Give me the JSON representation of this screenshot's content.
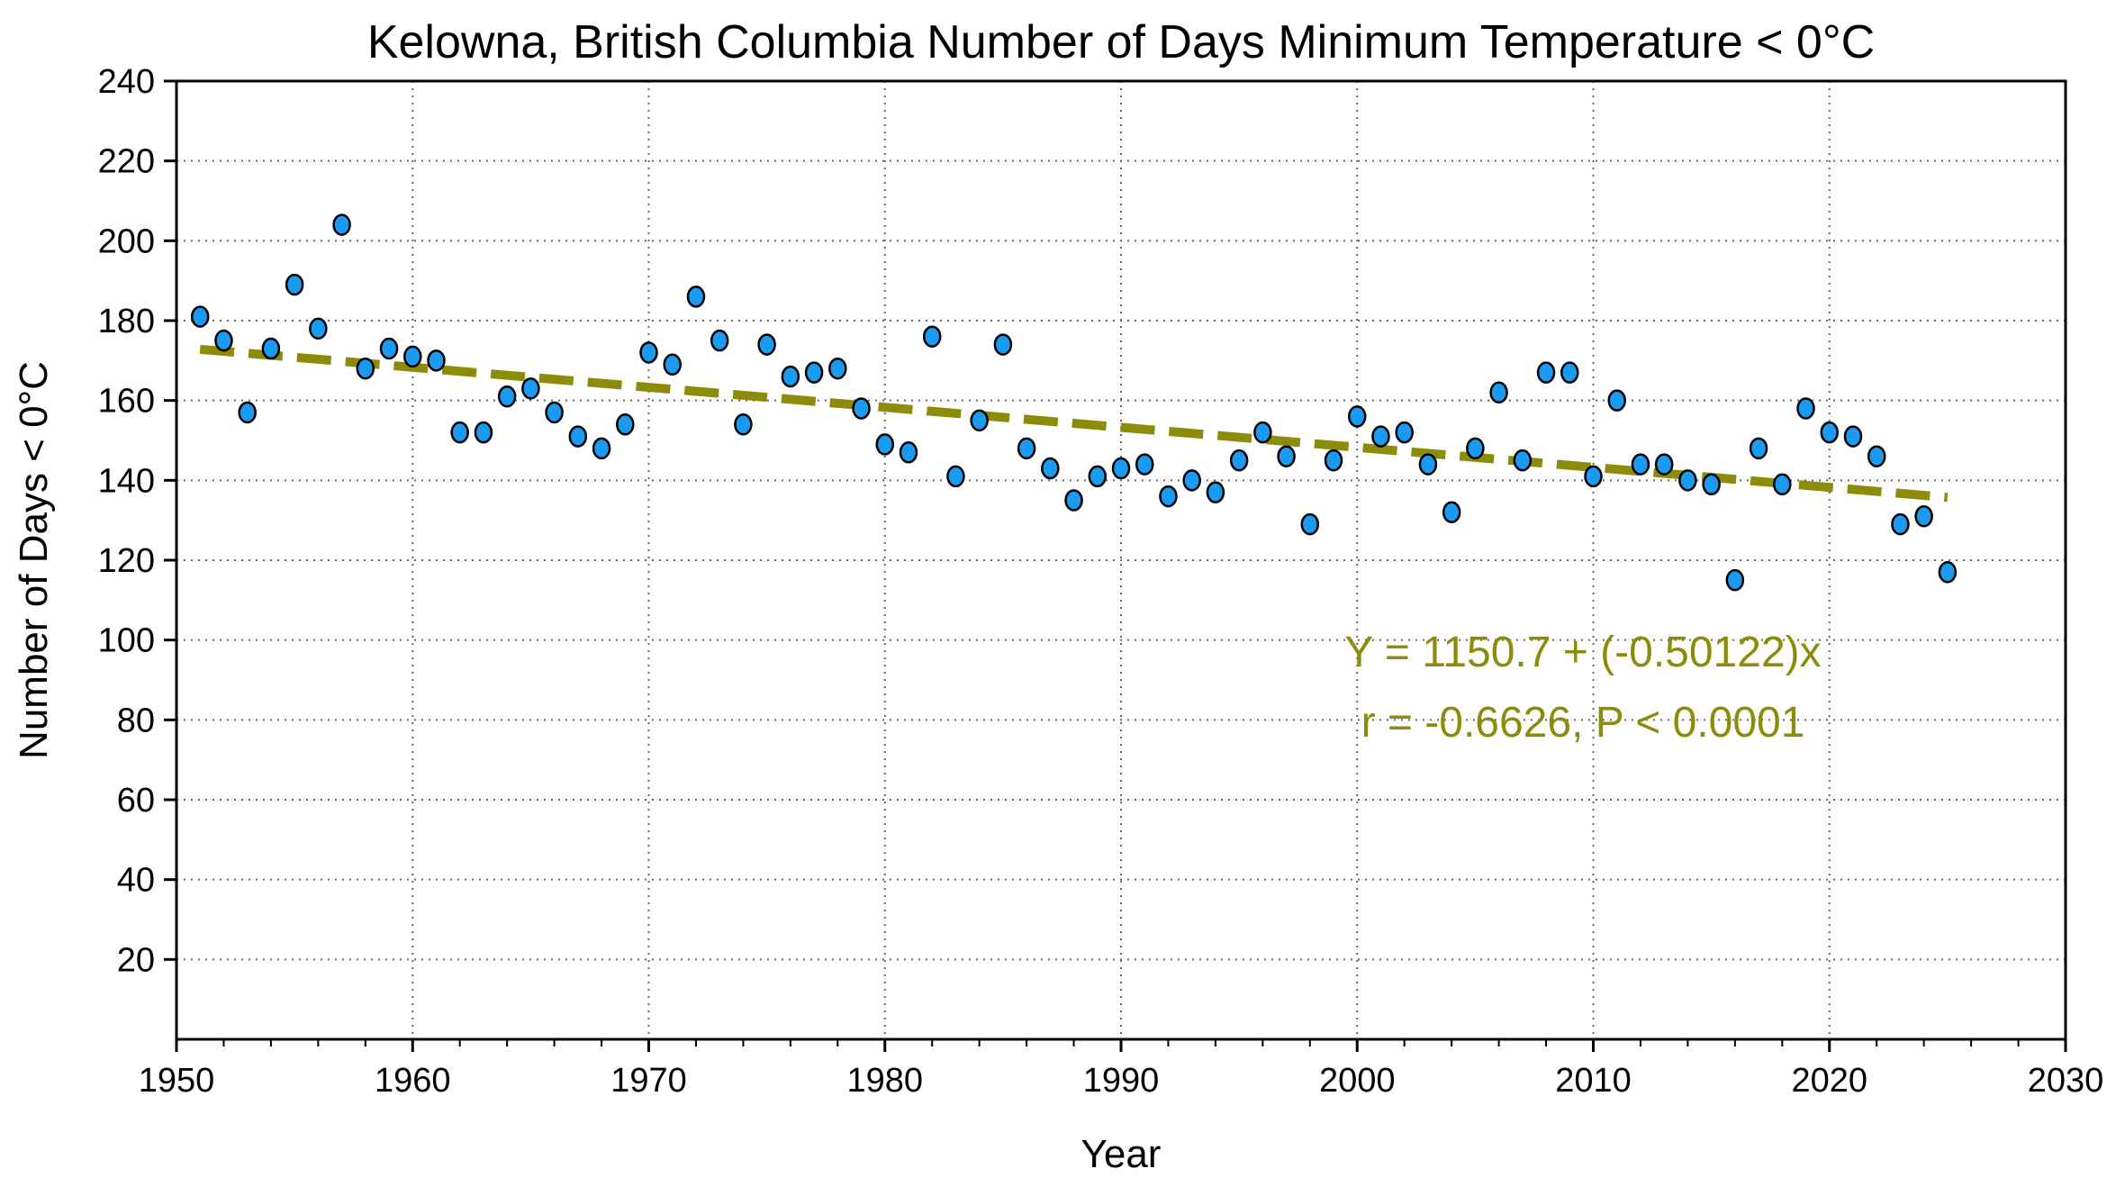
{
  "chart_data": {
    "type": "scatter",
    "title": "Kelowna, British Columbia Number of Days Minimum Temperature  < 0°C",
    "xlabel": "Year",
    "ylabel": "Number of Days < 0°C",
    "xlim": [
      1950,
      2030
    ],
    "ylim": [
      0,
      240
    ],
    "xticks": [
      1950,
      1960,
      1970,
      1980,
      1990,
      2000,
      2010,
      2020,
      2030
    ],
    "yticks": [
      20,
      40,
      60,
      80,
      100,
      120,
      140,
      160,
      180,
      200,
      220,
      240
    ],
    "grid": true,
    "x": [
      1951,
      1952,
      1953,
      1954,
      1955,
      1956,
      1957,
      1958,
      1959,
      1960,
      1961,
      1962,
      1963,
      1964,
      1965,
      1966,
      1967,
      1968,
      1969,
      1970,
      1971,
      1972,
      1973,
      1974,
      1975,
      1976,
      1977,
      1978,
      1979,
      1980,
      1981,
      1982,
      1983,
      1984,
      1985,
      1986,
      1987,
      1988,
      1989,
      1990,
      1991,
      1992,
      1993,
      1994,
      1995,
      1996,
      1997,
      1998,
      1999,
      2000,
      2001,
      2002,
      2003,
      2004,
      2005,
      2006,
      2007,
      2008,
      2009,
      2010,
      2011,
      2012,
      2013,
      2014,
      2015,
      2016,
      2017,
      2018,
      2019,
      2020,
      2021,
      2022,
      2023,
      2024,
      2025
    ],
    "y": [
      181,
      175,
      157,
      173,
      189,
      178,
      204,
      168,
      173,
      171,
      170,
      152,
      152,
      161,
      163,
      157,
      151,
      148,
      154,
      172,
      169,
      186,
      175,
      154,
      174,
      166,
      167,
      168,
      158,
      149,
      147,
      176,
      141,
      155,
      174,
      148,
      143,
      135,
      141,
      143,
      144,
      136,
      140,
      137,
      145,
      152,
      146,
      129,
      145,
      156,
      151,
      152,
      144,
      132,
      148,
      162,
      145,
      167,
      167,
      141,
      160,
      144,
      144,
      140,
      139,
      115,
      148,
      139,
      158,
      152,
      151,
      146,
      129,
      131,
      117
    ],
    "trend": {
      "intercept": 1150.7,
      "slope": -0.50122,
      "x_range": [
        1951,
        2025
      ]
    },
    "annotation_line1": "Y = 1150.7 + (-0.50122)x",
    "annotation_line2": "r = -0.6626, P < 0.0001",
    "colors": {
      "points": "#1a9af0",
      "trend": "#8c8c0a"
    }
  }
}
